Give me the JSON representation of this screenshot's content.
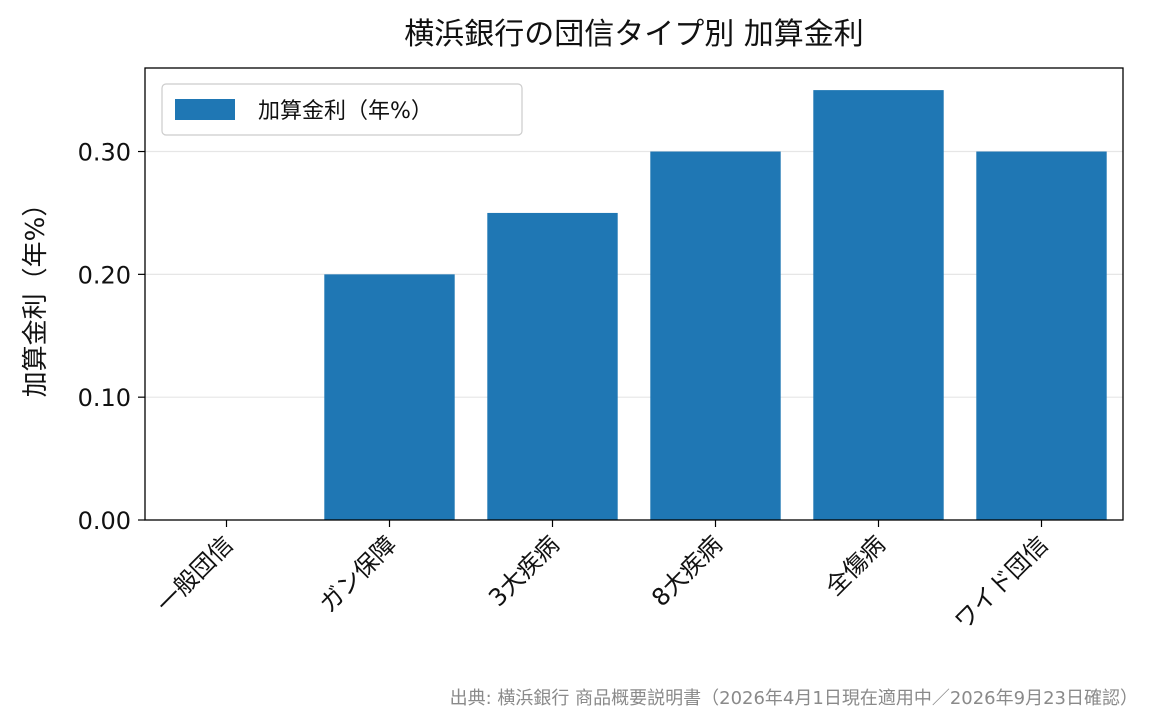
{
  "chart_data": {
    "type": "bar",
    "title": "横浜銀行の団信タイプ別 加算金利",
    "ylabel": "加算金利（年%）",
    "xlabel": "",
    "categories": [
      "一般団信",
      "ガン保障",
      "3大疾病",
      "8大疾病",
      "全傷病",
      "ワイド団信"
    ],
    "series": [
      {
        "name": "加算金利（年%）",
        "values": [
          0.0,
          0.2,
          0.25,
          0.3,
          0.35,
          0.3
        ],
        "color": "#1f77b4"
      }
    ],
    "ylim": [
      0,
      0.368
    ],
    "yticks": [
      "0.00",
      "0.10",
      "0.20",
      "0.30"
    ],
    "grid": "horizontal",
    "legend": "top-left",
    "source": "出典: 横浜銀行 商品概要説明書（2026年4月1日現在適用中／2026年9月23日確認）"
  }
}
